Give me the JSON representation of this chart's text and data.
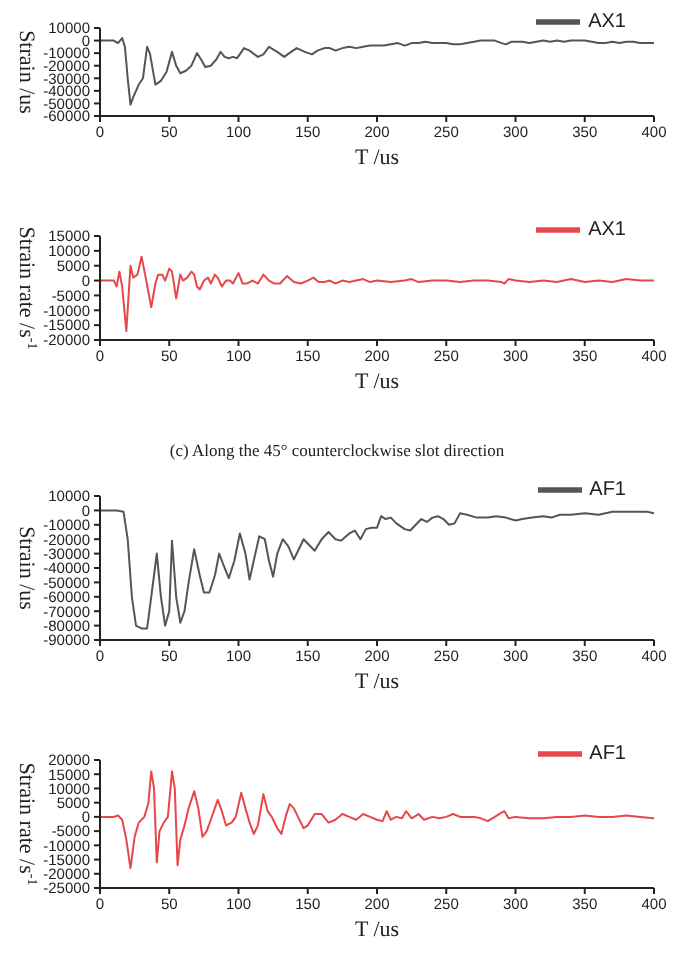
{
  "chart_data": [
    {
      "type": "line",
      "xlabel": "T /us",
      "ylabel": "Strain /us",
      "xlim": [
        0,
        400
      ],
      "xticks": [
        0,
        50,
        100,
        150,
        200,
        250,
        300,
        350,
        400
      ],
      "ylim": [
        -60000,
        10000
      ],
      "yticks": [
        -60000,
        -50000,
        -40000,
        -30000,
        -20000,
        -10000,
        0,
        10000
      ],
      "legend": "top right",
      "marker": "none",
      "series": [
        {
          "name": "AX1",
          "color": "#555555",
          "x": [
            0,
            10,
            13,
            16,
            18,
            20,
            22,
            24,
            28,
            31,
            34,
            36,
            40,
            44,
            48,
            52,
            55,
            58,
            62,
            66,
            70,
            73,
            76,
            80,
            84,
            87,
            90,
            93,
            96,
            99,
            104,
            108,
            114,
            118,
            122,
            128,
            133,
            138,
            142,
            148,
            153,
            157,
            162,
            166,
            170,
            175,
            180,
            185,
            190,
            195,
            200,
            205,
            210,
            215,
            220,
            225,
            230,
            235,
            240,
            250,
            255,
            260,
            265,
            270,
            275,
            280,
            285,
            290,
            293,
            297,
            305,
            310,
            315,
            320,
            325,
            330,
            335,
            340,
            345,
            350,
            355,
            360,
            365,
            370,
            375,
            380,
            385,
            390,
            395,
            400
          ],
          "values": [
            0,
            0,
            -2000,
            2000,
            -5000,
            -30000,
            -51000,
            -45000,
            -35000,
            -30000,
            -5000,
            -10000,
            -35000,
            -32000,
            -25000,
            -9000,
            -20000,
            -26000,
            -24000,
            -20000,
            -10000,
            -15000,
            -21000,
            -20000,
            -15000,
            -9000,
            -13000,
            -14000,
            -13000,
            -14000,
            -6000,
            -8000,
            -13000,
            -11000,
            -5000,
            -9000,
            -13000,
            -9000,
            -6000,
            -9000,
            -11000,
            -8000,
            -6000,
            -6000,
            -8000,
            -6000,
            -5000,
            -6000,
            -5000,
            -4000,
            -4000,
            -4000,
            -3000,
            -2000,
            -4000,
            -2000,
            -2000,
            -1000,
            -2000,
            -2000,
            -3000,
            -3000,
            -2000,
            -1000,
            0,
            0,
            0,
            -2000,
            -3000,
            -1000,
            -1000,
            -2000,
            -1000,
            0,
            -1000,
            0,
            -1000,
            0,
            0,
            0,
            -1000,
            -2000,
            -2000,
            -1000,
            -2000,
            -1000,
            -1000,
            -2000,
            -2000,
            -2000
          ]
        }
      ]
    },
    {
      "type": "line",
      "xlabel": "T /us",
      "ylabel": "Strain rate /s$^{-1}$",
      "xlim": [
        0,
        400
      ],
      "xticks": [
        0,
        50,
        100,
        150,
        200,
        250,
        300,
        350,
        400
      ],
      "ylim": [
        -20000,
        15000
      ],
      "yticks": [
        -20000,
        -15000,
        -10000,
        -5000,
        0,
        5000,
        10000,
        15000
      ],
      "legend": "top right",
      "marker": "none",
      "series": [
        {
          "name": "AX1",
          "color": "#e8474a",
          "x": [
            0,
            10,
            12,
            14,
            16,
            19,
            22,
            24,
            27,
            30,
            33,
            37,
            40,
            42,
            45,
            47,
            50,
            52,
            55,
            58,
            60,
            63,
            66,
            68,
            70,
            72,
            75,
            78,
            80,
            83,
            85,
            88,
            91,
            94,
            96,
            100,
            103,
            106,
            110,
            114,
            118,
            122,
            126,
            130,
            135,
            140,
            145,
            150,
            154,
            158,
            162,
            166,
            170,
            175,
            180,
            185,
            190,
            195,
            200,
            210,
            220,
            225,
            230,
            240,
            250,
            260,
            270,
            280,
            290,
            292,
            295,
            300,
            310,
            320,
            330,
            340,
            350,
            360,
            370,
            380,
            390,
            400
          ],
          "values": [
            0,
            0,
            -2000,
            3000,
            -2000,
            -17000,
            5000,
            1000,
            2000,
            8000,
            1000,
            -9000,
            -1000,
            2000,
            2000,
            0,
            4000,
            3000,
            -6000,
            2000,
            0,
            1000,
            3000,
            2000,
            -2000,
            -3000,
            0,
            1000,
            -1000,
            2000,
            1000,
            -2000,
            0,
            0,
            -1000,
            2500,
            -1000,
            -1000,
            0,
            -1000,
            2000,
            0,
            -1000,
            -1000,
            1500,
            -500,
            -1000,
            0,
            1000,
            -500,
            -500,
            0,
            -1000,
            0,
            -500,
            0,
            500,
            -500,
            0,
            -500,
            0,
            500,
            -500,
            0,
            0,
            -500,
            0,
            0,
            -500,
            -1000,
            500,
            0,
            -500,
            0,
            -500,
            500,
            -500,
            0,
            -500,
            500,
            0,
            0
          ]
        }
      ]
    },
    {
      "type": "line",
      "title": "(c) Along the 45° counterclockwise slot direction",
      "xlabel": "T /us",
      "ylabel": "Strain /us",
      "xlim": [
        0,
        400
      ],
      "xticks": [
        0,
        50,
        100,
        150,
        200,
        250,
        300,
        350,
        400
      ],
      "ylim": [
        -90000,
        10000
      ],
      "yticks": [
        -90000,
        -80000,
        -70000,
        -60000,
        -50000,
        -40000,
        -30000,
        -20000,
        -10000,
        0,
        10000
      ],
      "legend": "top right",
      "marker": "none",
      "series": [
        {
          "name": "AF1",
          "color": "#555555",
          "x": [
            0,
            12,
            17,
            20,
            23,
            26,
            30,
            34,
            37,
            41,
            44,
            47,
            50,
            52,
            55,
            58,
            61,
            64,
            68,
            72,
            75,
            79,
            83,
            86,
            90,
            93,
            97,
            101,
            105,
            108,
            111,
            115,
            119,
            122,
            125,
            128,
            132,
            136,
            140,
            143,
            147,
            151,
            155,
            160,
            165,
            170,
            174,
            180,
            184,
            188,
            192,
            196,
            200,
            203,
            206,
            210,
            214,
            220,
            224,
            228,
            232,
            236,
            240,
            244,
            248,
            252,
            256,
            260,
            265,
            272,
            280,
            286,
            293,
            300,
            305,
            312,
            320,
            326,
            332,
            340,
            350,
            360,
            370,
            380,
            390,
            395,
            400
          ],
          "values": [
            0,
            0,
            -1000,
            -20000,
            -60000,
            -80000,
            -82000,
            -82000,
            -60000,
            -30000,
            -60000,
            -80000,
            -70000,
            -21000,
            -60000,
            -78000,
            -70000,
            -50000,
            -27000,
            -45000,
            -57000,
            -57000,
            -45000,
            -30000,
            -40000,
            -47000,
            -35000,
            -16000,
            -30000,
            -48000,
            -35000,
            -18000,
            -20000,
            -35000,
            -46000,
            -30000,
            -20000,
            -25000,
            -34000,
            -28000,
            -20000,
            -24000,
            -28000,
            -20000,
            -15000,
            -20000,
            -21000,
            -16000,
            -14000,
            -20000,
            -13000,
            -12000,
            -12000,
            -4000,
            -6000,
            -5000,
            -9000,
            -13000,
            -14000,
            -10000,
            -6000,
            -8000,
            -5000,
            -4000,
            -6000,
            -10000,
            -9000,
            -2000,
            -3000,
            -5000,
            -5000,
            -4000,
            -5000,
            -7000,
            -6000,
            -5000,
            -4000,
            -5000,
            -3000,
            -3000,
            -2000,
            -3000,
            -1000,
            -1000,
            -1000,
            -1000,
            -2000
          ]
        }
      ]
    },
    {
      "type": "line",
      "xlabel": "T /us",
      "ylabel": "Strain rate /s$^{-1}$",
      "xlim": [
        0,
        400
      ],
      "xticks": [
        0,
        50,
        100,
        150,
        200,
        250,
        300,
        350,
        400
      ],
      "ylim": [
        -25000,
        20000
      ],
      "yticks": [
        -25000,
        -20000,
        -15000,
        -10000,
        -5000,
        0,
        5000,
        10000,
        15000,
        20000
      ],
      "legend": "top right",
      "marker": "none",
      "series": [
        {
          "name": "AF1",
          "color": "#e8474a",
          "x": [
            0,
            10,
            13,
            16,
            19,
            22,
            25,
            28,
            32,
            35,
            37,
            39,
            41,
            43,
            46,
            49,
            52,
            54,
            56,
            58,
            61,
            64,
            68,
            71,
            74,
            77,
            80,
            85,
            88,
            91,
            95,
            98,
            102,
            105,
            108,
            111,
            114,
            118,
            121,
            124,
            128,
            131,
            134,
            137,
            140,
            143,
            147,
            150,
            155,
            160,
            165,
            170,
            175,
            180,
            185,
            190,
            195,
            200,
            204,
            207,
            210,
            214,
            218,
            221,
            225,
            230,
            234,
            240,
            245,
            250,
            255,
            260,
            270,
            275,
            280,
            285,
            290,
            292,
            295,
            300,
            310,
            320,
            330,
            340,
            350,
            360,
            370,
            380,
            390,
            400
          ],
          "values": [
            0,
            0,
            500,
            -1000,
            -8000,
            -18000,
            -7000,
            -2000,
            0,
            5000,
            16000,
            10000,
            -16000,
            -5000,
            -2000,
            0,
            16000,
            10000,
            -17000,
            -8000,
            -3000,
            3000,
            9000,
            3000,
            -7000,
            -5000,
            -1000,
            6000,
            2000,
            -3000,
            -2000,
            0,
            8500,
            3000,
            -2000,
            -6000,
            -3000,
            8000,
            2000,
            0,
            -4000,
            -6000,
            0,
            4500,
            3000,
            0,
            -4000,
            -3000,
            1000,
            1000,
            -2000,
            -1000,
            1000,
            0,
            -1000,
            1000,
            0,
            -1000,
            -1500,
            2000,
            -1000,
            0,
            -500,
            2000,
            -500,
            1000,
            -1000,
            0,
            -500,
            0,
            1000,
            0,
            0,
            -500,
            -1500,
            0,
            1500,
            2000,
            -500,
            0,
            -500,
            -500,
            0,
            0,
            500,
            0,
            0,
            500,
            0,
            -500
          ]
        }
      ]
    }
  ]
}
